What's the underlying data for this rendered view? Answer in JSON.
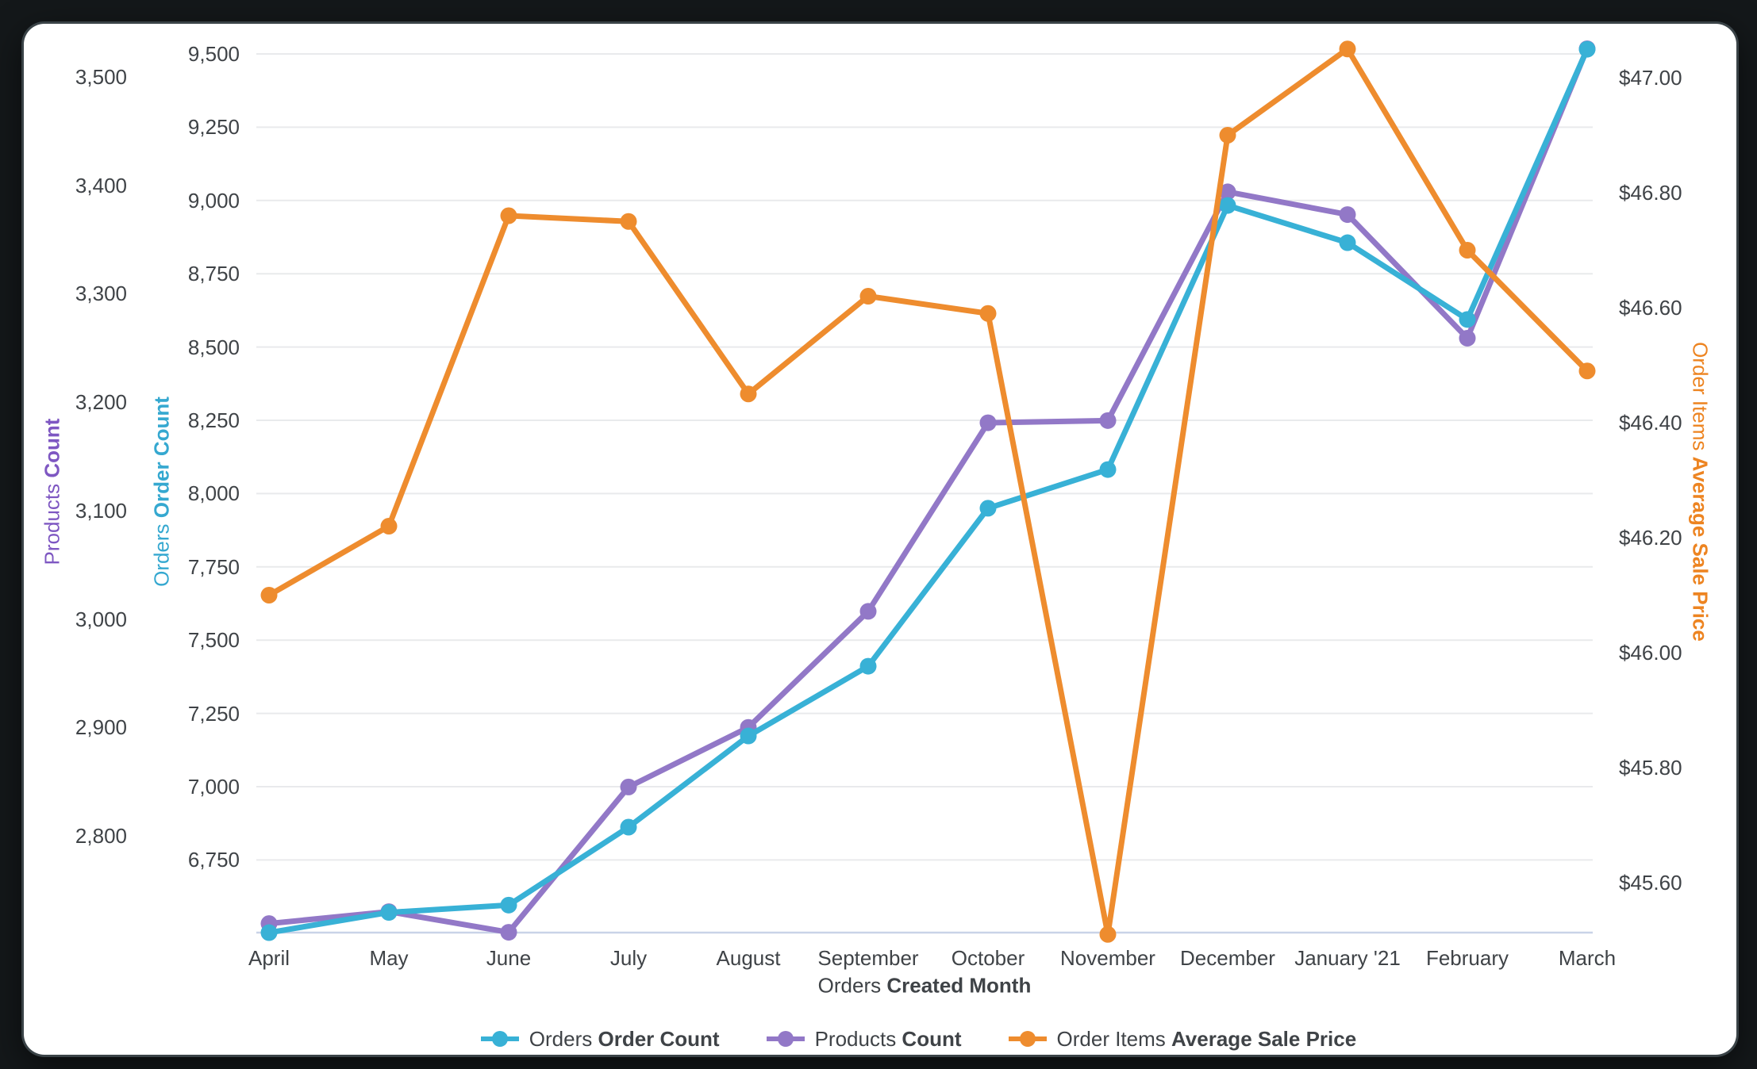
{
  "page": {
    "background_color": "#14181a",
    "card_background_color": "#ffffff"
  },
  "chart_data": {
    "type": "line",
    "title": "",
    "grid": true,
    "legend_position": "bottom",
    "categories": [
      "April",
      "May",
      "June",
      "July",
      "August",
      "September",
      "October",
      "November",
      "December",
      "January '21",
      "February",
      "March"
    ],
    "series": [
      {
        "name": "Orders Order Count",
        "view": "Orders",
        "field": "Order Count",
        "color": "#38b1d6",
        "axis": "orders",
        "values": [
          6502,
          6571,
          6596,
          6862,
          7173,
          7411,
          7950,
          8082,
          8983,
          8856,
          8594,
          9516
        ]
      },
      {
        "name": "Products Count",
        "view": "Products",
        "field": "Count",
        "color": "#9278c7",
        "axis": "products",
        "values": [
          2719,
          2730,
          2711,
          2845,
          2900,
          3007,
          3181,
          3183,
          3394,
          3373,
          3259,
          3526
        ]
      },
      {
        "name": "Order Items Average Sale Price",
        "view": "Order Items",
        "field": "Average Sale Price",
        "color": "#ee8c2e",
        "axis": "price",
        "values": [
          46.1,
          46.22,
          46.76,
          46.75,
          46.45,
          46.62,
          46.59,
          45.51,
          46.9,
          47.05,
          46.7,
          46.49
        ]
      }
    ],
    "axes": {
      "products": {
        "title_view": "Products",
        "title_field": "Count",
        "color": "#7e57c2",
        "tick_labels": [
          "3,500",
          "3,400",
          "3,300",
          "3,200",
          "3,100",
          "3,000",
          "2,900",
          "2,800"
        ],
        "range_hint": [
          2710,
          3530
        ]
      },
      "orders": {
        "title_view": "Orders",
        "title_field": "Order Count",
        "color": "#35a8d0",
        "tick_labels": [
          "9,500",
          "9,250",
          "9,000",
          "8,750",
          "8,500",
          "8,250",
          "8,000",
          "7,750",
          "7,500",
          "7,250",
          "7,000",
          "6,750"
        ],
        "range_hint": [
          6500,
          9590
        ]
      },
      "price": {
        "title_view": "Order Items",
        "title_field": "Average Sale Price",
        "color": "#ed8421",
        "tick_labels": [
          "$47.00",
          "$46.80",
          "$46.60",
          "$46.40",
          "$46.20",
          "$46.00",
          "$45.80",
          "$45.60"
        ],
        "range_hint": [
          45.5,
          47.09
        ]
      },
      "x": {
        "title_view": "Orders",
        "title_field": "Created Month"
      }
    },
    "legend": [
      {
        "view": "Orders",
        "field": "Order Count",
        "color": "#38b1d6"
      },
      {
        "view": "Products",
        "field": "Count",
        "color": "#9278c7"
      },
      {
        "view": "Order Items",
        "field": "Average Sale Price",
        "color": "#ee8c2e"
      }
    ]
  },
  "colors": {
    "tick_text": "#3f4347",
    "gridline": "#e9eaec",
    "baseline": "#c9d3e8"
  }
}
